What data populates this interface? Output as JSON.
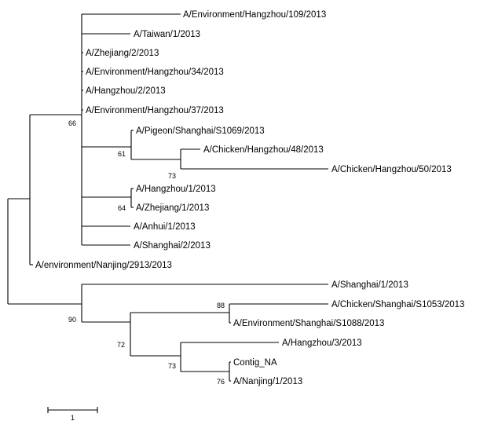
{
  "tree": {
    "leaves": [
      "A/Environment/Hangzhou/109/2013",
      "A/Taiwan/1/2013",
      "A/Zhejiang/2/2013",
      "A/Environment/Hangzhou/34/2013",
      "A/Hangzhou/2/2013",
      "A/Environment/Hangzhou/37/2013",
      "A/Pigeon/Shanghai/S1069/2013",
      "A/Chicken/Hangzhou/48/2013",
      "A/Chicken/Hangzhou/50/2013",
      "A/Hangzhou/1/2013",
      "A/Zhejiang/1/2013",
      "A/Anhui/1/2013",
      "A/Shanghai/2/2013",
      "A/environment/Nanjing/2913/2013",
      "A/Shanghai/1/2013",
      "A/Chicken/Shanghai/S1053/2013",
      "A/Environment/Shanghai/S1088/2013",
      "A/Hangzhou/3/2013",
      "Contig_NA",
      "A/Nanjing/1/2013"
    ],
    "bootstrap": [
      "66",
      "61",
      "73",
      "64",
      "90",
      "88",
      "72",
      "73",
      "76"
    ]
  },
  "scale_bar": {
    "label": "1"
  }
}
